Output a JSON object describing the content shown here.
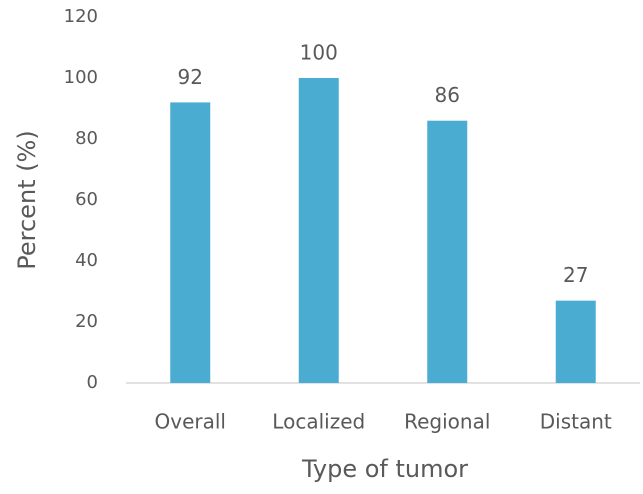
{
  "chart_data": {
    "type": "bar",
    "xlabel": "Type of tumor",
    "ylabel": "Percent (%)",
    "categories": [
      "Overall",
      "Localized",
      "Regional",
      "Distant"
    ],
    "values": [
      92,
      100,
      86,
      27
    ],
    "color": "#4bacd2",
    "ylim": [
      0,
      120
    ],
    "yticks": [
      0,
      20,
      40,
      60,
      80,
      100,
      120
    ],
    "grid": false
  }
}
